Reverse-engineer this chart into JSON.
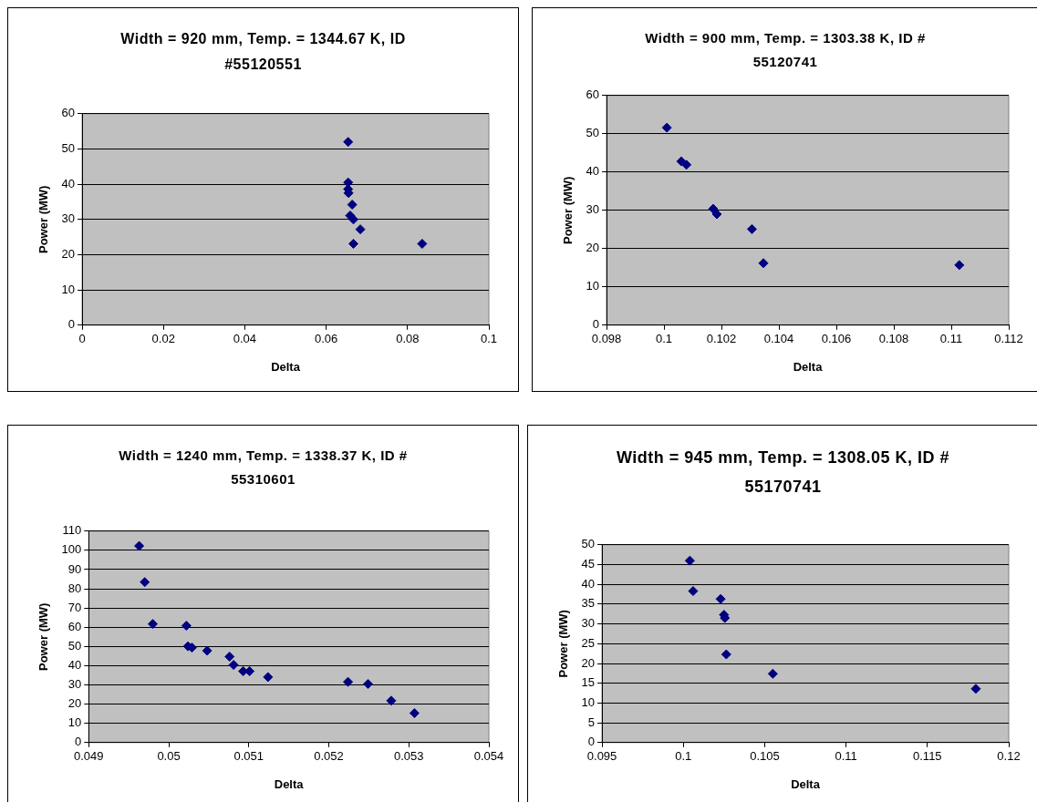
{
  "chart_data": [
    {
      "type": "scatter",
      "title": "Width = 920 mm, Temp. = 1344.67 K, ID #55120551",
      "xlabel": "Delta",
      "ylabel": "Power (MW)",
      "color": "#000080",
      "marker": "diamond",
      "grid": "y",
      "x": [
        0.0654,
        0.0654,
        0.0654,
        0.0655,
        0.0664,
        0.0659,
        0.0667,
        0.0684,
        0.0667,
        0.0836
      ],
      "values": [
        52,
        40.5,
        38.6,
        37.5,
        34.2,
        31.1,
        30,
        27.2,
        23.1,
        23.1
      ],
      "xlim": [
        0,
        0.1
      ],
      "xticks": [
        0,
        0.02,
        0.04,
        0.06,
        0.08,
        0.1
      ],
      "ylim": [
        0,
        60
      ],
      "yticks": [
        0,
        10,
        20,
        30,
        40,
        50,
        60
      ]
    },
    {
      "type": "scatter",
      "title": "Width = 900 mm, Temp. = 1303.38 K, ID # 55120741",
      "xlabel": "Delta",
      "ylabel": "Power (MW)",
      "color": "#000080",
      "marker": "diamond",
      "grid": "y",
      "x": [
        0.1001,
        0.1006,
        0.10078,
        0.10171,
        0.10184,
        0.10306,
        0.10346,
        0.11028
      ],
      "values": [
        51.6,
        42.8,
        41.9,
        30.4,
        29,
        25.1,
        16.2,
        15.7
      ],
      "xlim": [
        0.098,
        0.112
      ],
      "xticks": [
        0.098,
        0.1,
        0.102,
        0.104,
        0.106,
        0.108,
        0.11,
        0.112
      ],
      "ylim": [
        0,
        60
      ],
      "yticks": [
        0,
        10,
        20,
        30,
        40,
        50,
        60
      ]
    },
    {
      "type": "scatter",
      "title": "Width = 1240 mm, Temp. = 1338.37 K, ID # 55310601",
      "xlabel": "Delta",
      "ylabel": "Power (MW)",
      "color": "#000080",
      "marker": "diamond",
      "grid": "y",
      "x": [
        0.04963,
        0.0497,
        0.0498,
        0.05022,
        0.05024,
        0.05029,
        0.05048,
        0.05076,
        0.05081,
        0.05093,
        0.05101,
        0.05124,
        0.05224,
        0.05249,
        0.05278,
        0.05307
      ],
      "values": [
        102.3,
        83.5,
        61.7,
        60.8,
        50.1,
        49.4,
        47.8,
        44.7,
        40.4,
        37.1,
        37.1,
        34.1,
        31.6,
        30.5,
        21.8,
        15.3
      ],
      "xlim": [
        0.049,
        0.054
      ],
      "xticks": [
        0.049,
        0.05,
        0.051,
        0.052,
        0.053,
        0.054
      ],
      "ylim": [
        0,
        110
      ],
      "yticks": [
        0,
        10,
        20,
        30,
        40,
        50,
        60,
        70,
        80,
        90,
        100,
        110
      ]
    },
    {
      "type": "scatter",
      "title": "Width = 945 mm, Temp. = 1308.05 K, ID # 55170741",
      "xlabel": "Delta",
      "ylabel": "Power (MW)",
      "color": "#000080",
      "marker": "diamond",
      "grid": "y",
      "x": [
        0.1004,
        0.1006,
        0.10229,
        0.1025,
        0.10255,
        0.10264,
        0.1055,
        0.11798
      ],
      "values": [
        46,
        38.3,
        36.3,
        32.3,
        31.5,
        22.3,
        17.4,
        13.6
      ],
      "xlim": [
        0.095,
        0.12
      ],
      "xticks": [
        0.095,
        0.1,
        0.105,
        0.11,
        0.115,
        0.12
      ],
      "ylim": [
        0,
        50
      ],
      "yticks": [
        0,
        5,
        10,
        15,
        20,
        25,
        30,
        35,
        40,
        45,
        50
      ]
    }
  ]
}
